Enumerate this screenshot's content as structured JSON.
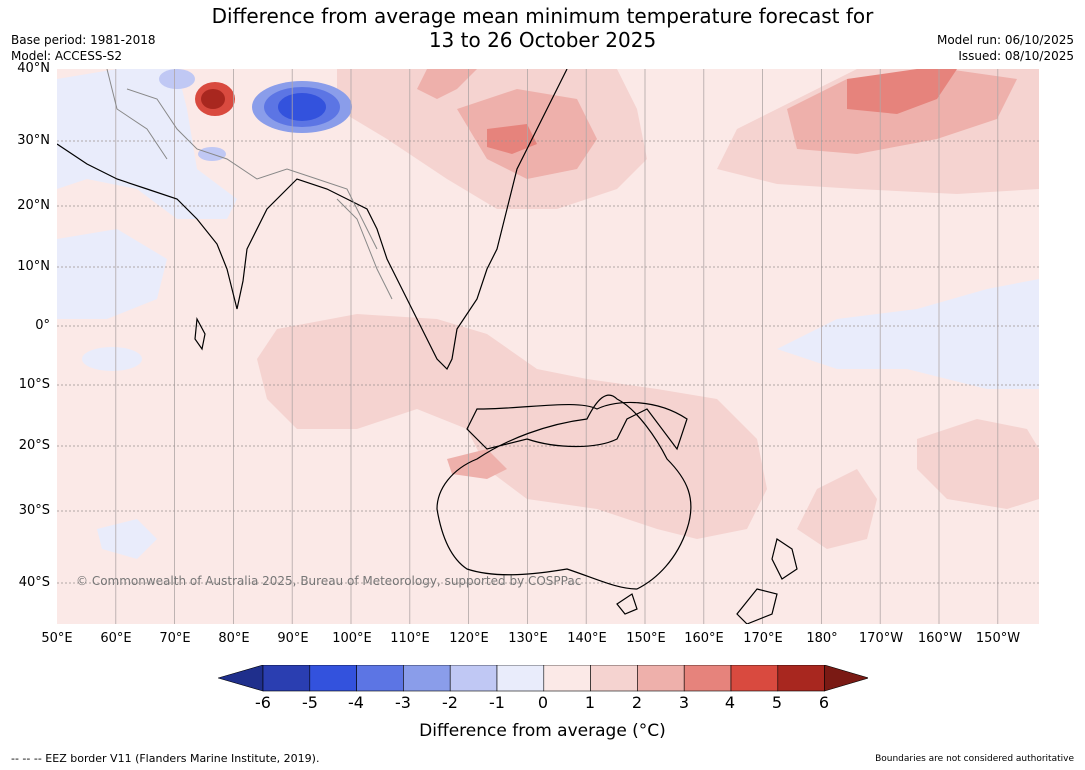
{
  "header": {
    "title_line1": "Difference from average mean minimum temperature forecast for",
    "title_line2": "13 to 26 October 2025",
    "base_period": "Base period: 1981-2018",
    "model": "Model: ACCESS-S2",
    "model_run": "Model run: 06/10/2025",
    "issued": "Issued: 08/10/2025"
  },
  "axes": {
    "lat_ticks": [
      "40°N",
      "30°N",
      "20°N",
      "10°N",
      "0°",
      "10°S",
      "20°S",
      "30°S",
      "40°S"
    ],
    "lon_ticks": [
      "50°E",
      "60°E",
      "70°E",
      "80°E",
      "90°E",
      "100°E",
      "110°E",
      "120°E",
      "130°E",
      "140°E",
      "150°E",
      "160°E",
      "170°E",
      "180°",
      "170°W",
      "160°W",
      "150°W"
    ]
  },
  "map": {
    "copyright": "© Commonwealth of Australia 2025, Bureau of Meteorology, supported by COSPPac"
  },
  "colorbar": {
    "ticks": [
      "-6",
      "-5",
      "-4",
      "-3",
      "-2",
      "-1",
      "0",
      "1",
      "2",
      "3",
      "4",
      "5",
      "6"
    ],
    "colors": [
      "#1f2f8c",
      "#2a3eb1",
      "#3352dd",
      "#5c75e4",
      "#8a9dea",
      "#c0c8f4",
      "#e9ecfb",
      "#fbe9e7",
      "#f5d3d0",
      "#eeb0ab",
      "#e6837c",
      "#d94a3f",
      "#a8271f",
      "#7a1a14"
    ],
    "label": "Difference from average (°C)"
  },
  "footer": {
    "eez_note": "-- -- -- EEZ border V11 (Flanders Marine Institute, 2019).",
    "boundary_note": "Boundaries are not considered authoritative"
  }
}
